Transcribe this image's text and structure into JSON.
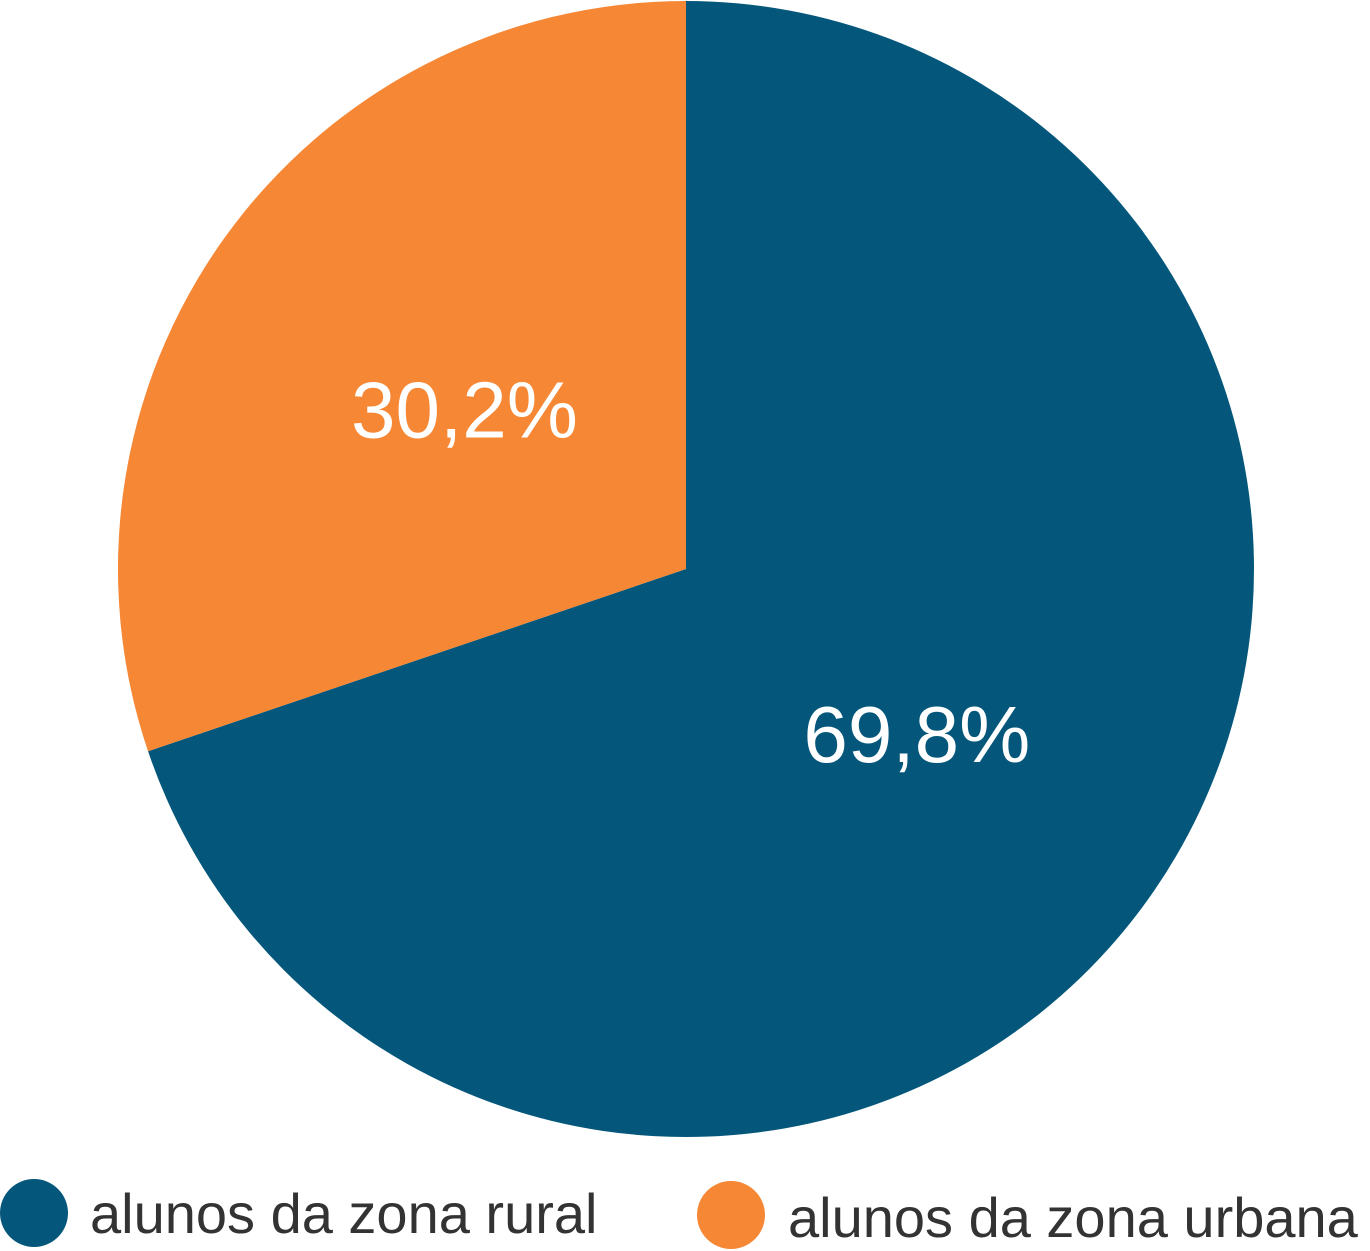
{
  "chart_data": {
    "type": "pie",
    "title": "",
    "slices": [
      {
        "label": "alunos da zona rural",
        "value": 69.8,
        "display": "69,8%",
        "color": "#04577b"
      },
      {
        "label": "alunos da zona urbana",
        "value": 30.2,
        "display": "30,2%",
        "color": "#f68734"
      }
    ],
    "start_angle": "12 o'clock",
    "direction": "clockwise",
    "legend": {
      "placement": "bottom",
      "items": [
        "alunos da zona rural",
        "alunos da zona urbana"
      ]
    }
  }
}
